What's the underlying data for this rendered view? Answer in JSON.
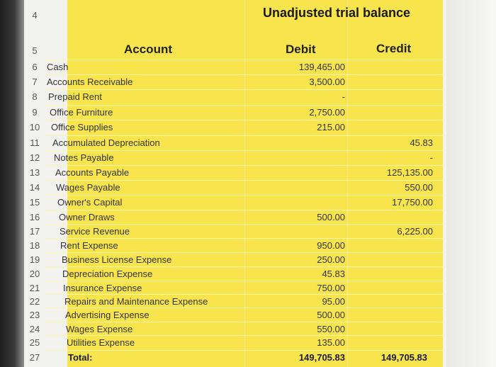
{
  "title": "Unadjusted trial balance",
  "header_row_num": "4",
  "columns": {
    "account": "Account",
    "debit": "Debit",
    "credit": "Credit"
  },
  "colhdr_row_num": "5",
  "rows": [
    {
      "n": "6",
      "account": "Cash",
      "debit": "139,465.00",
      "credit": ""
    },
    {
      "n": "7",
      "account": "Accounts Receivable",
      "debit": "3,500.00",
      "credit": ""
    },
    {
      "n": "8",
      "account": "Prepaid Rent",
      "debit": "-",
      "credit": ""
    },
    {
      "n": "9",
      "account": "Office Furniture",
      "debit": "2,750.00",
      "credit": ""
    },
    {
      "n": "10",
      "account": "Office Supplies",
      "debit": "215.00",
      "credit": ""
    },
    {
      "n": "11",
      "account": "Accumulated Depreciation",
      "debit": "",
      "credit": "45.83"
    },
    {
      "n": "12",
      "account": "Notes Payable",
      "debit": "",
      "credit": "-"
    },
    {
      "n": "13",
      "account": "Accounts Payable",
      "debit": "",
      "credit": "125,135.00"
    },
    {
      "n": "14",
      "account": "Wages Payable",
      "debit": "",
      "credit": "550.00"
    },
    {
      "n": "15",
      "account": "Owner's Capital",
      "debit": "",
      "credit": "17,750.00"
    },
    {
      "n": "16",
      "account": "Owner Draws",
      "debit": "500.00",
      "credit": ""
    },
    {
      "n": "17",
      "account": "Service Revenue",
      "debit": "",
      "credit": "6,225.00"
    },
    {
      "n": "18",
      "account": "Rent Expense",
      "debit": "950.00",
      "credit": ""
    },
    {
      "n": "19",
      "account": "Business License Expense",
      "debit": "250.00",
      "credit": ""
    },
    {
      "n": "20",
      "account": "Depreciation Expense",
      "debit": "45.83",
      "credit": ""
    },
    {
      "n": "21",
      "account": "Insurance Expense",
      "debit": "750.00",
      "credit": ""
    },
    {
      "n": "22",
      "account": "Repairs and Maintenance Expense",
      "debit": "95.00",
      "credit": ""
    },
    {
      "n": "23",
      "account": "Advertising Expense",
      "debit": "500.00",
      "credit": ""
    },
    {
      "n": "24",
      "account": "Wages Expense",
      "debit": "550.00",
      "credit": ""
    },
    {
      "n": "25",
      "account": "Utilities Expense",
      "debit": "135.00",
      "credit": ""
    }
  ],
  "total": {
    "n": "27",
    "label": "Total:",
    "debit": "149,705.83",
    "credit": "149,705.83"
  },
  "colors": {
    "cell_fill": "#f8e44c",
    "sheet": "#f2f2ef"
  }
}
